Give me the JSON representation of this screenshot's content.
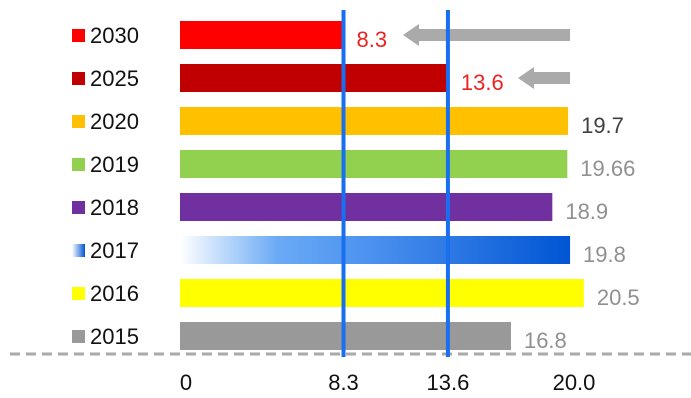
{
  "chart_data": {
    "type": "bar",
    "orientation": "horizontal",
    "categories": [
      "2030",
      "2025",
      "2020",
      "2019",
      "2018",
      "2017",
      "2016",
      "2015"
    ],
    "values": [
      8.3,
      13.6,
      19.7,
      19.66,
      18.9,
      19.8,
      20.5,
      16.8
    ],
    "value_labels": [
      "8.3",
      "13.6",
      "19.7",
      "19.66",
      "18.9",
      "19.8",
      "20.5",
      "16.8"
    ],
    "colors": [
      "#ff0000",
      "#c00000",
      "#ffc000",
      "#92d050",
      "#7030a0",
      "#0066dd",
      "#ffff00",
      "#999999"
    ],
    "label_colors": [
      "#ee2222",
      "#ee2222",
      "#404040",
      "#909090",
      "#909090",
      "#909090",
      "#909090",
      "#909090"
    ],
    "gradient_category": "2017",
    "x_ticks": [
      0,
      8.3,
      13.6,
      20.0
    ],
    "x_tick_labels": [
      "0",
      "8.3",
      "13.6",
      "20.0"
    ],
    "reference_lines": [
      8.3,
      13.6
    ],
    "reference_line_color": "#1a6ef0",
    "arrows": [
      {
        "category": "2030",
        "color": "#aaaaaa"
      },
      {
        "category": "2025",
        "color": "#aaaaaa"
      }
    ],
    "xlim": [
      0,
      20.5
    ],
    "grid": false,
    "baseline": "dashed",
    "legend": "left"
  }
}
